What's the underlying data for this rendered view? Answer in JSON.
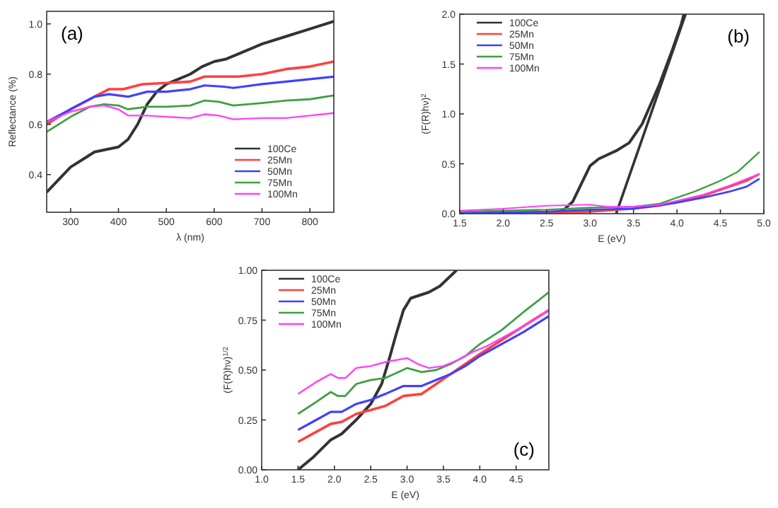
{
  "chart_data": [
    {
      "type": "line",
      "annotations": [
        "(a)"
      ],
      "xlabel": "λ (nm)",
      "ylabel": "Reflectance (%)",
      "xlim": [
        250,
        850
      ],
      "ylim": [
        0.25,
        1.05
      ],
      "xticks": [
        300,
        400,
        500,
        600,
        700,
        800
      ],
      "yticks": [
        0.4,
        0.6,
        0.8,
        {
          "value": 1,
          "label": "1.0"
        }
      ],
      "grid": false,
      "legend": "bottom right",
      "series": [
        {
          "name": "100Ce",
          "color": "#333333",
          "x": [
            250,
            275,
            300,
            325,
            350,
            375,
            400,
            420,
            440,
            460,
            480,
            500,
            525,
            550,
            575,
            600,
            625,
            650,
            700,
            750,
            800,
            850
          ],
          "values": [
            0.33,
            0.38,
            0.43,
            0.46,
            0.49,
            0.5,
            0.51,
            0.54,
            0.6,
            0.68,
            0.73,
            0.76,
            0.78,
            0.8,
            0.83,
            0.85,
            0.86,
            0.88,
            0.92,
            0.95,
            0.98,
            1.01
          ]
        },
        {
          "name": "25Mn",
          "color": "#ff4040",
          "x": [
            250,
            300,
            350,
            380,
            410,
            450,
            500,
            550,
            580,
            620,
            650,
            700,
            750,
            800,
            850
          ],
          "values": [
            0.6,
            0.66,
            0.71,
            0.74,
            0.74,
            0.76,
            0.765,
            0.77,
            0.79,
            0.79,
            0.79,
            0.8,
            0.82,
            0.83,
            0.85
          ]
        },
        {
          "name": "50Mn",
          "color": "#4040ff",
          "x": [
            250,
            300,
            350,
            380,
            420,
            460,
            500,
            550,
            580,
            620,
            640,
            660,
            700,
            750,
            800,
            850
          ],
          "values": [
            0.61,
            0.66,
            0.71,
            0.72,
            0.71,
            0.73,
            0.73,
            0.74,
            0.755,
            0.75,
            0.745,
            0.75,
            0.76,
            0.77,
            0.78,
            0.79
          ]
        },
        {
          "name": "75Mn",
          "color": "#40a040",
          "x": [
            250,
            300,
            340,
            370,
            400,
            420,
            460,
            500,
            550,
            580,
            610,
            640,
            700,
            750,
            800,
            850
          ],
          "values": [
            0.57,
            0.63,
            0.67,
            0.68,
            0.675,
            0.66,
            0.67,
            0.67,
            0.675,
            0.695,
            0.69,
            0.675,
            0.685,
            0.695,
            0.7,
            0.715
          ]
        },
        {
          "name": "100Mn",
          "color": "#ff40ff",
          "x": [
            250,
            300,
            340,
            370,
            400,
            420,
            460,
            500,
            550,
            580,
            610,
            640,
            700,
            750,
            800,
            850
          ],
          "values": [
            0.61,
            0.65,
            0.67,
            0.675,
            0.66,
            0.635,
            0.635,
            0.63,
            0.625,
            0.64,
            0.635,
            0.62,
            0.625,
            0.625,
            0.635,
            0.645
          ]
        }
      ]
    },
    {
      "type": "line",
      "annotations": [
        "(b)"
      ],
      "xlabel": "E (eV)",
      "ylabel": "(F(R)hν)$^{2}$",
      "xlim": [
        1.5,
        5
      ],
      "ylim": [
        0,
        2
      ],
      "xticks": [
        1.5,
        {
          "value": 2,
          "label": "2.0"
        },
        2.5,
        {
          "value": 3,
          "label": "3.0"
        },
        3.5,
        {
          "value": 4,
          "label": "4.0"
        },
        4.5,
        {
          "value": 5,
          "label": "5.0"
        }
      ],
      "yticks": [
        {
          "value": 0,
          "label": "0.0"
        },
        0.5,
        {
          "value": 1,
          "label": "1.0"
        },
        1.5,
        {
          "value": 2,
          "label": "2.0"
        }
      ],
      "grid": false,
      "legend": "top left",
      "series": [
        {
          "name": "100Ce",
          "color": "#333333",
          "x": [
            1.5,
            2.5,
            2.6,
            2.7,
            2.8,
            2.9,
            3.0,
            3.1,
            3.3,
            3.45,
            3.6,
            3.8,
            3.95,
            4.05,
            4.08
          ],
          "values": [
            0,
            0.01,
            0.01,
            0.04,
            0.12,
            0.3,
            0.48,
            0.55,
            0.63,
            0.71,
            0.9,
            1.3,
            1.65,
            1.9,
            2.0
          ]
        },
        {
          "color": "#333333",
          "x": [
            3.3,
            4.1
          ],
          "values": [
            0,
            2.0
          ]
        },
        {
          "name": "25Mn",
          "color": "#ff4040",
          "x": [
            1.5,
            2.5,
            3.0,
            3.5,
            3.8,
            4.0,
            4.3,
            4.6,
            4.8,
            4.95
          ],
          "values": [
            0,
            0.01,
            0.02,
            0.05,
            0.08,
            0.12,
            0.18,
            0.27,
            0.33,
            0.4
          ]
        },
        {
          "name": "50Mn",
          "color": "#4040ff",
          "x": [
            1.5,
            2.5,
            3.0,
            3.5,
            4.0,
            4.3,
            4.6,
            4.8,
            4.95
          ],
          "values": [
            0.01,
            0.02,
            0.04,
            0.05,
            0.11,
            0.16,
            0.22,
            0.27,
            0.35
          ]
        },
        {
          "name": "75Mn",
          "color": "#40a040",
          "x": [
            1.5,
            2.0,
            2.5,
            3.0,
            3.5,
            3.8,
            4.0,
            4.2,
            4.5,
            4.7,
            4.95
          ],
          "values": [
            0.02,
            0.03,
            0.04,
            0.06,
            0.07,
            0.1,
            0.16,
            0.22,
            0.33,
            0.42,
            0.62
          ]
        },
        {
          "name": "100Mn",
          "color": "#ff40ff",
          "x": [
            1.5,
            2.0,
            2.5,
            3.0,
            3.2,
            3.5,
            3.8,
            4.0,
            4.3,
            4.6,
            4.95
          ],
          "values": [
            0.03,
            0.05,
            0.08,
            0.09,
            0.07,
            0.07,
            0.09,
            0.13,
            0.19,
            0.28,
            0.4
          ]
        }
      ]
    },
    {
      "type": "line",
      "annotations": [
        "(c)"
      ],
      "xlabel": "E (eV)",
      "ylabel": "(F(R)hν)$^{1/2}$",
      "xlim": [
        1,
        4.95
      ],
      "ylim": [
        0,
        1
      ],
      "xticks": [
        {
          "value": 1,
          "label": "1.0"
        },
        1.5,
        {
          "value": 2,
          "label": "2.0"
        },
        2.5,
        {
          "value": 3,
          "label": "3.0"
        },
        3.5,
        {
          "value": 4,
          "label": "4.0"
        },
        4.5
      ],
      "yticks": [
        {
          "value": 0,
          "label": "0.00"
        },
        0.25,
        {
          "value": 0.5,
          "label": "0.50"
        },
        0.75,
        {
          "value": 1,
          "label": "1.00"
        }
      ],
      "grid": false,
      "legend": "top left",
      "series": [
        {
          "name": "100Ce",
          "color": "#333333",
          "x": [
            1.5,
            1.7,
            1.95,
            2.1,
            2.3,
            2.5,
            2.65,
            2.75,
            2.85,
            2.95,
            3.05,
            3.3,
            3.45,
            3.68
          ],
          "values": [
            0,
            0.06,
            0.15,
            0.18,
            0.25,
            0.33,
            0.43,
            0.55,
            0.68,
            0.8,
            0.86,
            0.89,
            0.92,
            1.0
          ]
        },
        {
          "name": "25Mn",
          "color": "#ff4040",
          "x": [
            1.5,
            1.75,
            1.95,
            2.1,
            2.3,
            2.5,
            2.7,
            2.95,
            3.2,
            3.4,
            3.6,
            3.8,
            4.0,
            4.3,
            4.6,
            4.95
          ],
          "values": [
            0.14,
            0.19,
            0.23,
            0.24,
            0.28,
            0.3,
            0.32,
            0.37,
            0.38,
            0.43,
            0.48,
            0.53,
            0.58,
            0.65,
            0.72,
            0.8
          ]
        },
        {
          "name": "50Mn",
          "color": "#4040ff",
          "x": [
            1.5,
            1.75,
            1.95,
            2.1,
            2.3,
            2.5,
            2.7,
            2.95,
            3.2,
            3.4,
            3.6,
            3.8,
            4.0,
            4.3,
            4.6,
            4.95
          ],
          "values": [
            0.2,
            0.25,
            0.29,
            0.29,
            0.33,
            0.35,
            0.38,
            0.42,
            0.42,
            0.45,
            0.48,
            0.52,
            0.57,
            0.63,
            0.69,
            0.77
          ]
        },
        {
          "name": "75Mn",
          "color": "#40a040",
          "x": [
            1.5,
            1.75,
            1.95,
            2.05,
            2.15,
            2.3,
            2.5,
            2.7,
            3.0,
            3.2,
            3.4,
            3.6,
            3.8,
            4.0,
            4.3,
            4.6,
            4.95
          ],
          "values": [
            0.28,
            0.34,
            0.39,
            0.37,
            0.37,
            0.43,
            0.45,
            0.46,
            0.51,
            0.49,
            0.5,
            0.53,
            0.57,
            0.63,
            0.7,
            0.79,
            0.89
          ]
        },
        {
          "name": "100Mn",
          "color": "#ff40ff",
          "x": [
            1.5,
            1.75,
            1.95,
            2.05,
            2.15,
            2.3,
            2.5,
            2.7,
            3.0,
            3.15,
            3.3,
            3.5,
            3.7,
            3.9,
            4.1,
            4.4,
            4.7,
            4.95
          ],
          "values": [
            0.38,
            0.44,
            0.48,
            0.46,
            0.46,
            0.51,
            0.52,
            0.54,
            0.56,
            0.53,
            0.51,
            0.52,
            0.55,
            0.59,
            0.62,
            0.68,
            0.74,
            0.8
          ]
        }
      ]
    }
  ]
}
